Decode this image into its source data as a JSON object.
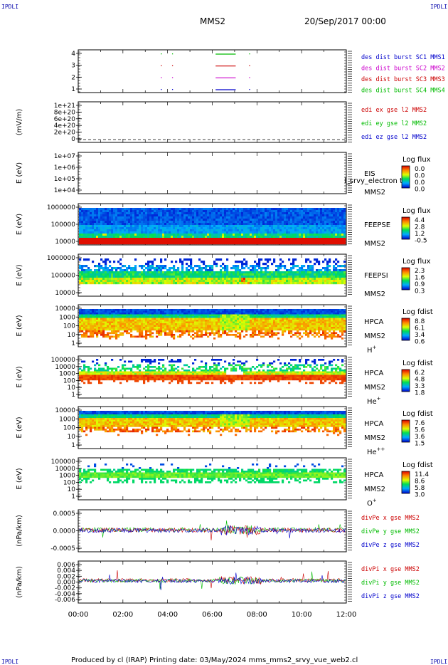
{
  "corner_labels": {
    "top_left": "IPDLI",
    "top_right": "IPDLI",
    "bottom_left": "IPDLI",
    "bottom_right": "IPDLI"
  },
  "header": {
    "spacecraft": "MMS2",
    "date": "20/Sep/2017 00:00"
  },
  "footer": "Produced by cl (IRAP)   Printing date: 03/May/2024   mms_mms2_srvy_vue_web2.cl",
  "xaxis": {
    "ticks": [
      "00:00",
      "02:00",
      "04:00",
      "06:00",
      "08:00",
      "10:00",
      "12:00"
    ],
    "range_hours": [
      0,
      12
    ]
  },
  "panels": [
    {
      "id": "burst",
      "yticks": [
        "4",
        "3",
        "2",
        "1"
      ],
      "legend": [
        {
          "text": "des dist burst SC1 MMS1",
          "color": "#0000cc"
        },
        {
          "text": "des dist burst SC2 MMS2",
          "color": "#cc00cc"
        },
        {
          "text": "des dist burst SC3 MMS3",
          "color": "#cc0000"
        },
        {
          "text": "des dist burst SC4 MMS4",
          "color": "#00bb00"
        }
      ]
    },
    {
      "id": "edi",
      "ylabel": "(mV/m)",
      "yticks": [
        "1e+21",
        "8e+20",
        "6e+20",
        "4e+20",
        "2e+20",
        "0"
      ],
      "legend": [
        {
          "text": "edi ex gse l2 MMS2",
          "color": "#cc0000"
        },
        {
          "text": "edi ey gse l2 MMS2",
          "color": "#00bb00"
        },
        {
          "text": "edi ez gse l2 MMS2",
          "color": "#0000cc"
        }
      ]
    },
    {
      "id": "eis",
      "ylabel": "E (eV)",
      "yticks": [
        "1e+07",
        "1e+06",
        "1e+05",
        "1e+04"
      ],
      "side": [
        "EIS",
        "MMS2"
      ],
      "overlay": "l_srvy_electron to",
      "cbar_title": "Log flux",
      "cbar_ticks": [
        "0.0",
        "0.0",
        "0.0",
        "0.0"
      ]
    },
    {
      "id": "feepse",
      "ylabel": "E (eV)",
      "yticks": [
        "1000000",
        "100000",
        "10000"
      ],
      "side": [
        "FEEPSE",
        "MMS2"
      ],
      "cbar_title": "Log flux",
      "cbar_ticks": [
        "4.4",
        "2.8",
        "1.2",
        "-0.5"
      ]
    },
    {
      "id": "feepsi",
      "ylabel": "E (eV)",
      "yticks": [
        "1000000",
        "100000",
        "10000"
      ],
      "side": [
        "FEEPSI",
        "MMS2"
      ],
      "cbar_title": "Log flux",
      "cbar_ticks": [
        "2.3",
        "1.6",
        "0.9",
        "0.3"
      ]
    },
    {
      "id": "hpca_h",
      "ylabel": "E (eV)",
      "yticks": [
        "10000",
        "1000",
        "100",
        "10",
        "1"
      ],
      "side": [
        "HPCA",
        "MMS2"
      ],
      "species": "H",
      "species_sup": "+",
      "cbar_title": "Log fdist",
      "cbar_ticks": [
        "8.8",
        "6.1",
        "3.4",
        "0.6"
      ]
    },
    {
      "id": "hpca_he",
      "ylabel": "E (eV)",
      "yticks": [
        "100000",
        "10000",
        "1000",
        "100",
        "10",
        "1"
      ],
      "side": [
        "HPCA",
        "MMS2"
      ],
      "species": "He",
      "species_sup": "+",
      "cbar_title": "Log fdist",
      "cbar_ticks": [
        "6.2",
        "4.8",
        "3.3",
        "1.8"
      ]
    },
    {
      "id": "hpca_hepp",
      "ylabel": "E (eV)",
      "yticks": [
        "10000",
        "1000",
        "100",
        "10",
        "1"
      ],
      "side": [
        "HPCA",
        "MMS2"
      ],
      "species": "He",
      "species_sup": "++",
      "cbar_title": "Log fdist",
      "cbar_ticks": [
        "7.6",
        "5.6",
        "3.6",
        "1.5"
      ]
    },
    {
      "id": "hpca_o",
      "ylabel": "E (eV)",
      "yticks": [
        "100000",
        "10000",
        "1000",
        "100",
        "10",
        "1"
      ],
      "side": [
        "HPCA",
        "MMS2"
      ],
      "species": "O",
      "species_sup": "+",
      "cbar_title": "Log fdist",
      "cbar_ticks": [
        "11.4",
        "8.6",
        "5.8",
        "3.0"
      ]
    },
    {
      "id": "divpe",
      "ylabel": "(nPa/km)",
      "yticks": [
        "0.0005",
        "0.0000",
        "-0.0005"
      ],
      "legend": [
        {
          "text": "divPe x gse MMS2",
          "color": "#cc0000"
        },
        {
          "text": "divPe y gse MMS2",
          "color": "#00bb00"
        },
        {
          "text": "divPe z gse MMS2",
          "color": "#0000cc"
        }
      ]
    },
    {
      "id": "divpi",
      "ylabel": "(nPa/km)",
      "yticks": [
        "0.006",
        "0.004",
        "0.002",
        "0.000",
        "-0.002",
        "-0.004",
        "-0.006"
      ],
      "legend": [
        {
          "text": "divPi x gse MMS2",
          "color": "#cc0000"
        },
        {
          "text": "divPi y gse MMS2",
          "color": "#00bb00"
        },
        {
          "text": "divPi z gse MMS2",
          "color": "#0000cc"
        }
      ]
    }
  ],
  "chart_data": {
    "type": "heatmap",
    "x_range_hours": [
      0,
      12
    ],
    "burst_intervals": [
      {
        "sc": 4,
        "start_h": 6.15,
        "end_h": 7.05,
        "color": "#00bb00"
      },
      {
        "sc": 3,
        "start_h": 6.15,
        "end_h": 7.05,
        "color": "#cc0000"
      },
      {
        "sc": 2,
        "start_h": 6.15,
        "end_h": 7.05,
        "color": "#cc00cc"
      },
      {
        "sc": 1,
        "start_h": 6.15,
        "end_h": 7.05,
        "color": "#0000cc"
      }
    ],
    "burst_dots": [
      {
        "sc": 4,
        "h": 3.7
      },
      {
        "sc": 4,
        "h": 4.2
      },
      {
        "sc": 4,
        "h": 7.65
      },
      {
        "sc": 3,
        "h": 3.7
      },
      {
        "sc": 3,
        "h": 4.2
      },
      {
        "sc": 3,
        "h": 7.65
      },
      {
        "sc": 2,
        "h": 3.7
      },
      {
        "sc": 2,
        "h": 4.2
      },
      {
        "sc": 2,
        "h": 7.65
      },
      {
        "sc": 1,
        "h": 3.7
      },
      {
        "sc": 1,
        "h": 4.2
      },
      {
        "sc": 1,
        "h": 7.65
      }
    ],
    "divPe_range": [
      -0.0008,
      0.0008
    ],
    "divPi_range": [
      -0.007,
      0.007
    ]
  }
}
